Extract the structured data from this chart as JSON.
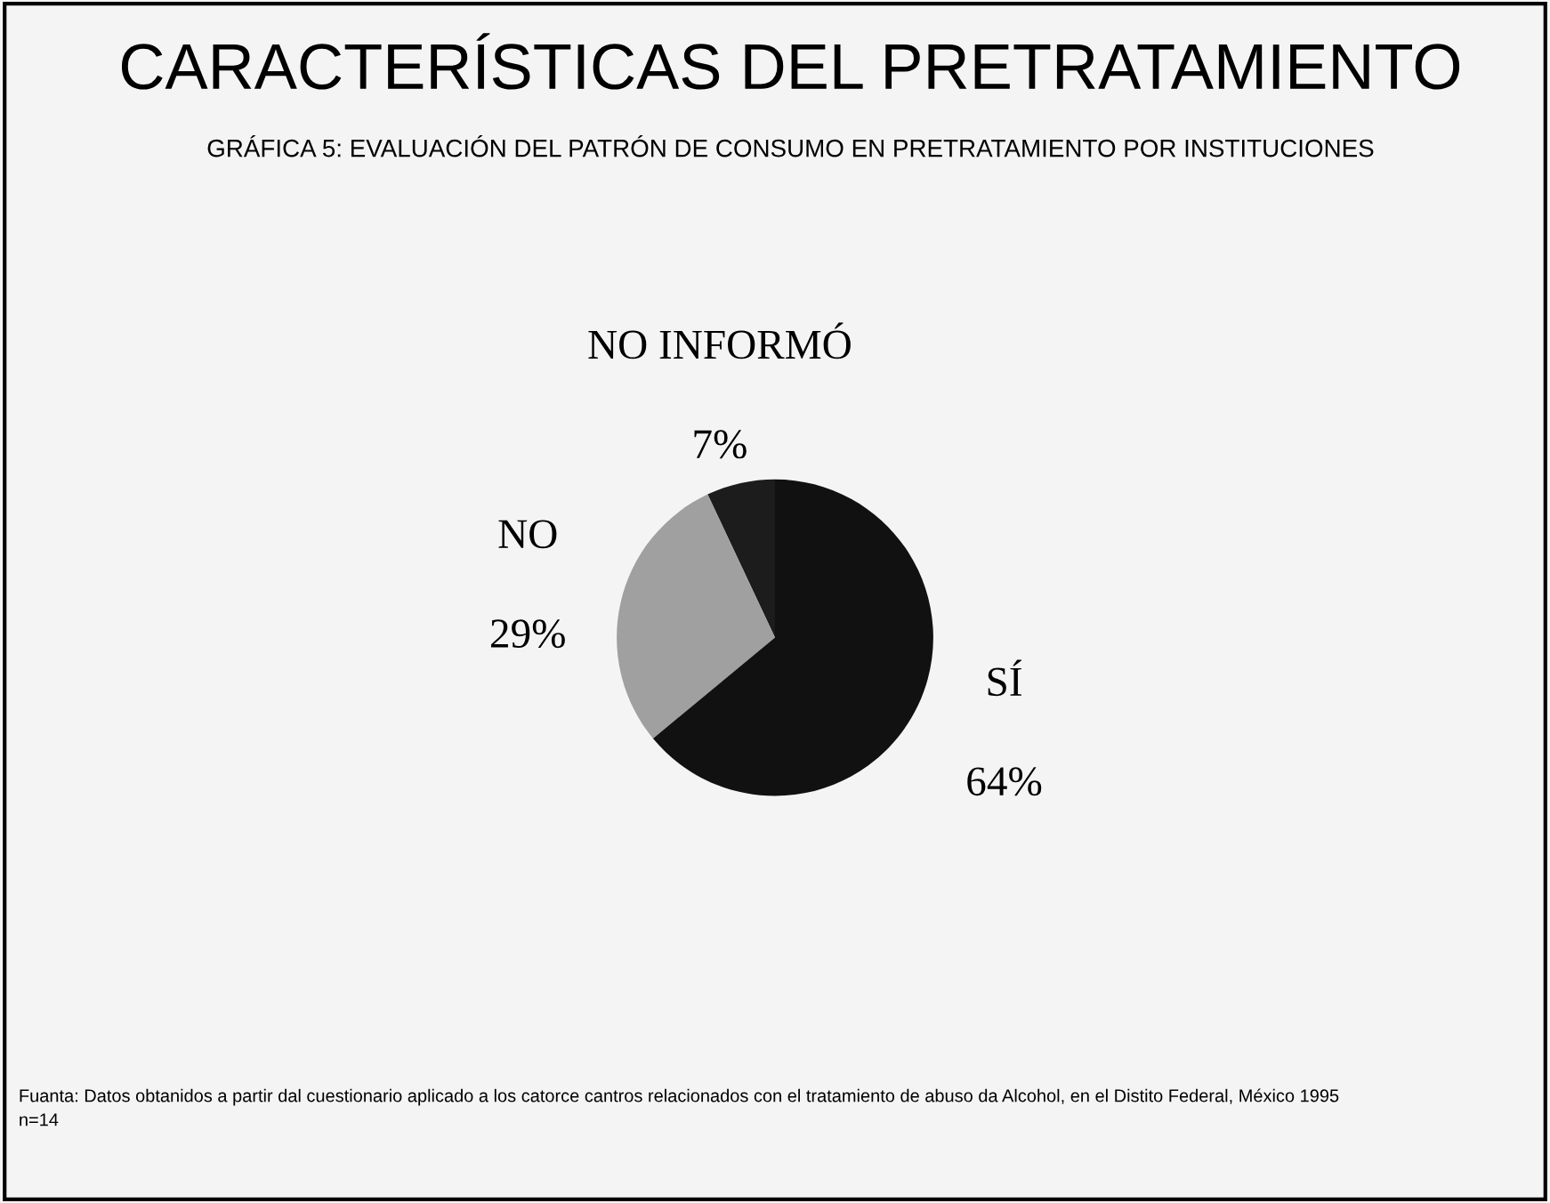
{
  "chart_data": {
    "type": "pie",
    "title": "CARACTERÍSTICAS DEL PRETRATAMIENTO",
    "subtitle": "GRÁFICA 5: EVALUACIÓN DEL PATRÓN DE CONSUMO EN PRETRATAMIENTO POR INSTITUCIONES",
    "categories": [
      "NO INFORMÓ",
      "NO",
      "SÍ"
    ],
    "values": [
      7,
      29,
      64
    ],
    "value_labels": [
      "7%",
      "29%",
      "64%"
    ],
    "colors": [
      "#1c1c1c",
      "#a0a0a0",
      "#111111"
    ],
    "annotations": [
      "Fuanta: Datos obtanidos a partir dal cuestionario aplicado a los catorce cantros relacionados con el tratamiento de abuso da Alcohol, en el Distito Federal, México 1995",
      "n=14"
    ]
  }
}
